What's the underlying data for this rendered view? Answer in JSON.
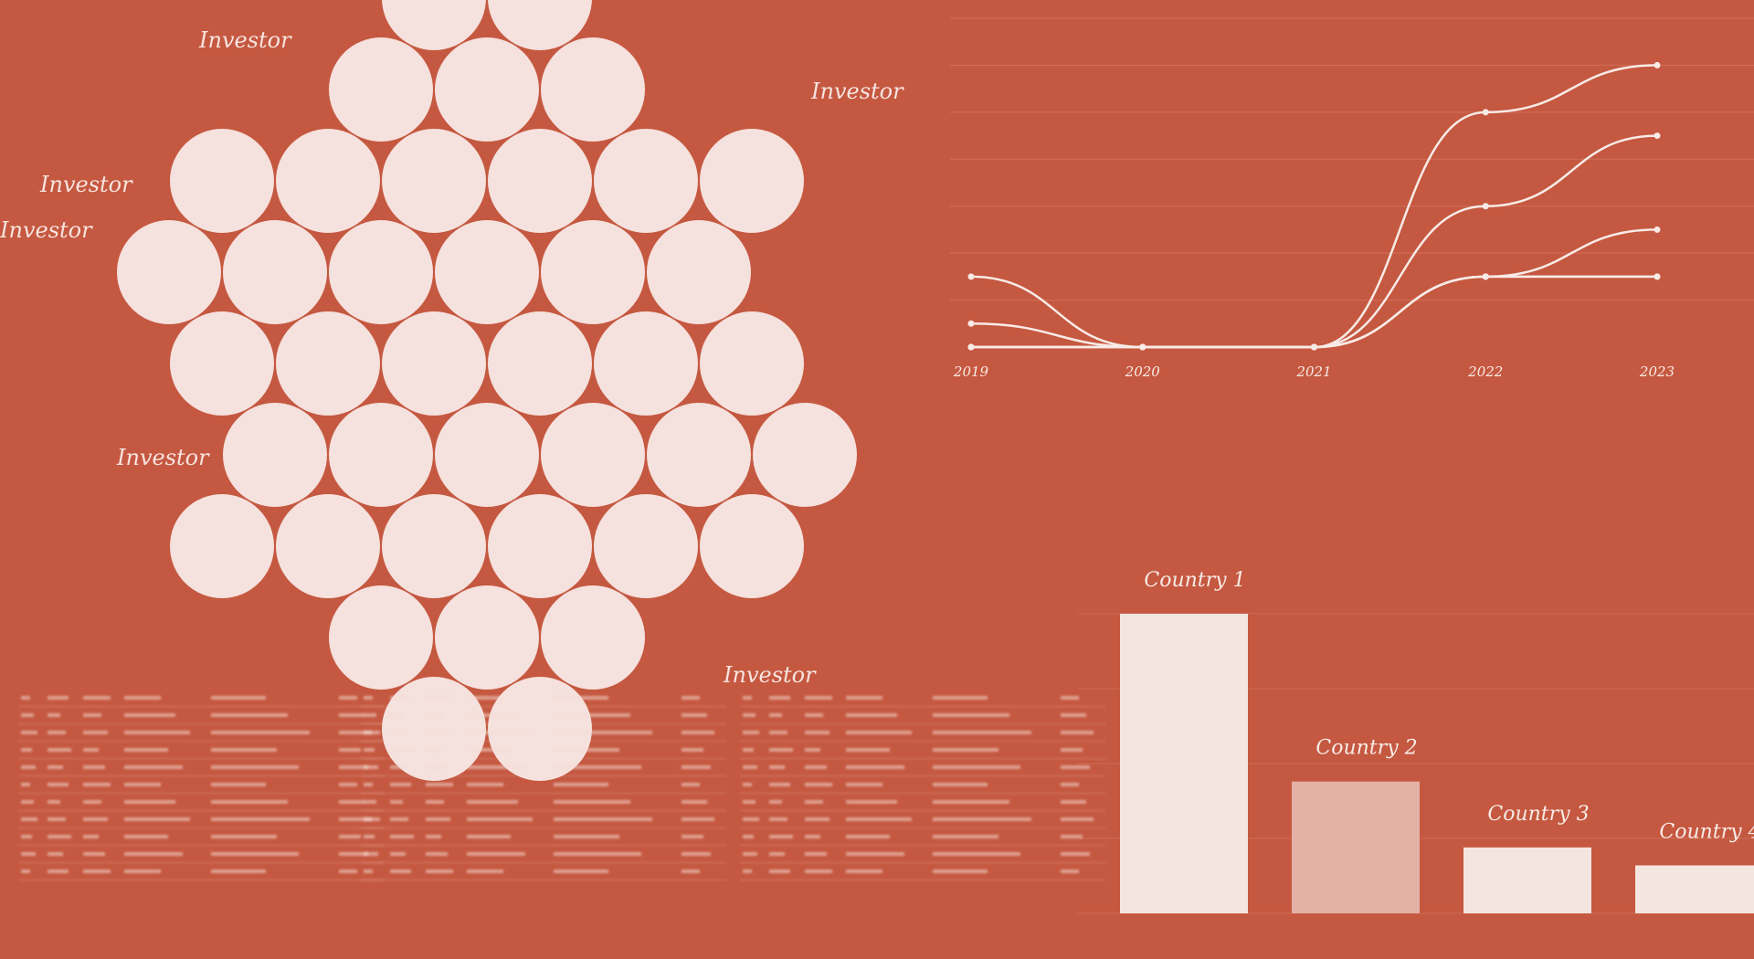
{
  "colors": {
    "background": "#c55840",
    "circle_fill": "#f5e1dd",
    "line": "#f8ebe7",
    "bar_light": "#f5e5e1",
    "bar_mid": "#e3b1a5"
  },
  "investor_labels": [
    "Investor",
    "Investor",
    "Investor",
    "Investor",
    "Investor",
    "Investor"
  ],
  "chart_data": [
    {
      "type": "line",
      "x": [
        "2019",
        "2020",
        "2021",
        "2022",
        "2023"
      ],
      "series": [
        {
          "values": [
            3,
            0,
            0,
            10,
            12
          ]
        },
        {
          "values": [
            1,
            0,
            0,
            6,
            9
          ]
        },
        {
          "values": [
            0,
            0,
            0,
            3,
            5
          ]
        },
        {
          "values": [
            0,
            0,
            0,
            3,
            3
          ]
        },
        {
          "values": [
            0,
            0,
            0,
            3,
            3
          ]
        }
      ],
      "ylim": [
        0,
        14
      ],
      "grid": true,
      "title": "",
      "xlabel": "",
      "ylabel": ""
    },
    {
      "type": "bar",
      "categories": [
        "Country 1",
        "Country 2",
        "Country 3",
        "Country 4"
      ],
      "values": [
        100,
        44,
        22,
        16
      ],
      "ylim": [
        0,
        100
      ],
      "title": "",
      "xlabel": "",
      "ylabel": ""
    }
  ]
}
